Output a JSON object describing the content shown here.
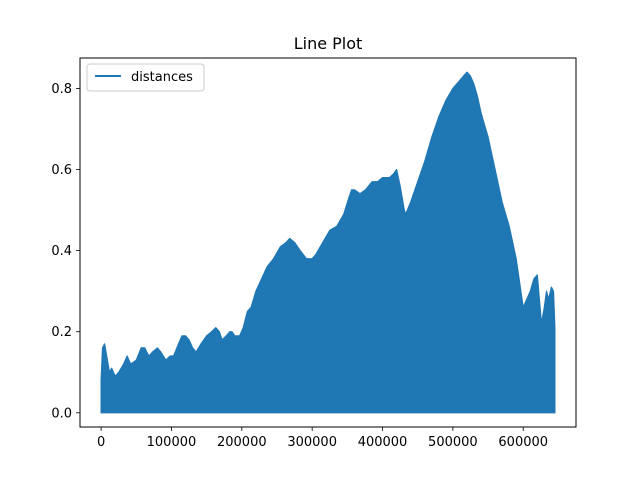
{
  "chart_data": {
    "type": "area",
    "title": "Line Plot",
    "xlabel": "",
    "ylabel": "",
    "xlim": [
      -30000,
      675000
    ],
    "ylim": [
      -0.035,
      0.875
    ],
    "xticks": [
      0,
      100000,
      200000,
      300000,
      400000,
      500000,
      600000
    ],
    "xtick_labels": [
      "0",
      "100000",
      "200000",
      "300000",
      "400000",
      "500000",
      "600000"
    ],
    "yticks": [
      0.0,
      0.2,
      0.4,
      0.6,
      0.8
    ],
    "ytick_labels": [
      "0.0",
      "0.2",
      "0.4",
      "0.6",
      "0.8"
    ],
    "grid": false,
    "legend": {
      "placement": "top-left",
      "entries": [
        "distances"
      ]
    },
    "series": [
      {
        "name": "distances",
        "color": "#1f77b4",
        "lower_envelope": 0.0,
        "x": [
          0,
          2000,
          5000,
          8000,
          12000,
          15000,
          20000,
          25000,
          32000,
          37000,
          42000,
          50000,
          57000,
          62000,
          68000,
          73000,
          80000,
          85000,
          92000,
          98000,
          103000,
          110000,
          115000,
          120000,
          125000,
          130000,
          135000,
          142000,
          150000,
          157000,
          163000,
          168000,
          172000,
          178000,
          183000,
          186000,
          190000,
          197000,
          202000,
          208000,
          213000,
          220000,
          228000,
          236000,
          245000,
          255000,
          263000,
          268000,
          275000,
          283000,
          292000,
          300000,
          305000,
          315000,
          325000,
          335000,
          345000,
          352000,
          356000,
          360000,
          368000,
          376000,
          385000,
          393000,
          400000,
          410000,
          416000,
          420000,
          425000,
          428000,
          431000,
          433000,
          440000,
          450000,
          460000,
          470000,
          480000,
          490000,
          500000,
          510000,
          515000,
          520000,
          525000,
          530000,
          535000,
          540000,
          545000,
          550000,
          560000,
          570000,
          580000,
          590000,
          600000,
          610000,
          615000,
          620000,
          623000,
          626000,
          630000,
          633000,
          636000,
          640000,
          643000,
          645000
        ],
        "upper_envelope": [
          0.08,
          0.16,
          0.17,
          0.14,
          0.1,
          0.11,
          0.09,
          0.1,
          0.12,
          0.14,
          0.12,
          0.13,
          0.16,
          0.16,
          0.14,
          0.15,
          0.16,
          0.15,
          0.13,
          0.14,
          0.14,
          0.17,
          0.19,
          0.19,
          0.18,
          0.16,
          0.15,
          0.17,
          0.19,
          0.2,
          0.21,
          0.2,
          0.18,
          0.19,
          0.2,
          0.2,
          0.19,
          0.19,
          0.21,
          0.25,
          0.26,
          0.3,
          0.33,
          0.36,
          0.38,
          0.41,
          0.42,
          0.43,
          0.42,
          0.4,
          0.38,
          0.38,
          0.39,
          0.42,
          0.45,
          0.46,
          0.49,
          0.53,
          0.55,
          0.55,
          0.54,
          0.55,
          0.57,
          0.57,
          0.58,
          0.58,
          0.59,
          0.6,
          0.56,
          0.53,
          0.5,
          0.49,
          0.52,
          0.57,
          0.62,
          0.68,
          0.73,
          0.77,
          0.8,
          0.82,
          0.83,
          0.84,
          0.83,
          0.81,
          0.78,
          0.74,
          0.71,
          0.68,
          0.6,
          0.52,
          0.46,
          0.38,
          0.26,
          0.3,
          0.33,
          0.34,
          0.28,
          0.22,
          0.26,
          0.3,
          0.28,
          0.31,
          0.3,
          0.21
        ]
      }
    ]
  }
}
